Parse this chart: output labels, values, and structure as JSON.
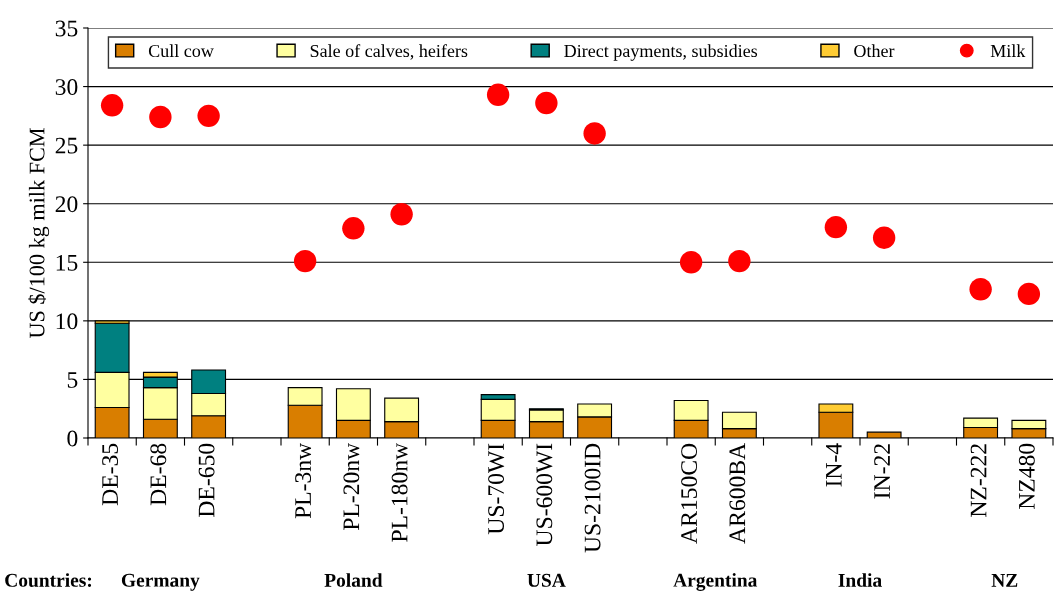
{
  "chart_data": {
    "type": "bar",
    "stacked": true,
    "ylabel": "US $/100 kg milk FCM",
    "categories": [
      "DE-35",
      "DE-68",
      "DE-650",
      null,
      "PL-3nw",
      "PL-20nw",
      "PL-180nw",
      null,
      "US-70WI",
      "US-600WI",
      "US-2100ID",
      null,
      "AR150CO",
      "AR600BA",
      null,
      "IN-4",
      "IN-22",
      null,
      "NZ-222",
      "NZ480"
    ],
    "series": [
      {
        "name": "Cull cow",
        "color": "#d97e00",
        "values": [
          2.6,
          1.6,
          1.9,
          null,
          2.8,
          1.5,
          1.4,
          null,
          1.5,
          1.4,
          1.8,
          null,
          1.5,
          0.8,
          null,
          2.2,
          0.5,
          null,
          0.9,
          0.8
        ]
      },
      {
        "name": "Sale of calves, heifers",
        "color": "#ffffa0",
        "values": [
          3.0,
          2.7,
          1.9,
          null,
          1.5,
          2.7,
          2.0,
          null,
          1.8,
          1.0,
          1.1,
          null,
          1.7,
          1.4,
          null,
          null,
          null,
          null,
          0.8,
          0.7
        ]
      },
      {
        "name": "Direct payments, subsidies",
        "color": "#008080",
        "values": [
          4.2,
          0.9,
          2.0,
          null,
          null,
          null,
          null,
          null,
          0.4,
          0.1,
          null,
          null,
          null,
          null,
          null,
          null,
          null,
          null,
          null,
          null
        ]
      },
      {
        "name": "Other",
        "color": "#ffcc33",
        "values": [
          0.2,
          0.4,
          null,
          null,
          null,
          null,
          null,
          null,
          null,
          null,
          null,
          null,
          null,
          null,
          null,
          0.7,
          null,
          null,
          null,
          null
        ]
      },
      {
        "name": "Milk",
        "type": "scatter",
        "marker": "circle",
        "color": "#ff0000",
        "values": [
          28.4,
          27.4,
          27.5,
          null,
          15.1,
          17.9,
          19.1,
          null,
          29.3,
          28.6,
          26.0,
          null,
          15.0,
          15.1,
          null,
          18.0,
          17.1,
          null,
          12.7,
          12.3
        ]
      }
    ],
    "ylim": [
      0,
      35
    ],
    "yticks": [
      0,
      5,
      10,
      15,
      20,
      25,
      30,
      35
    ],
    "grid": "y",
    "legend": "top",
    "annotations": [
      "Countries:",
      "Germany",
      "Poland",
      "USA",
      "Argentina",
      "India",
      "NZ"
    ]
  }
}
